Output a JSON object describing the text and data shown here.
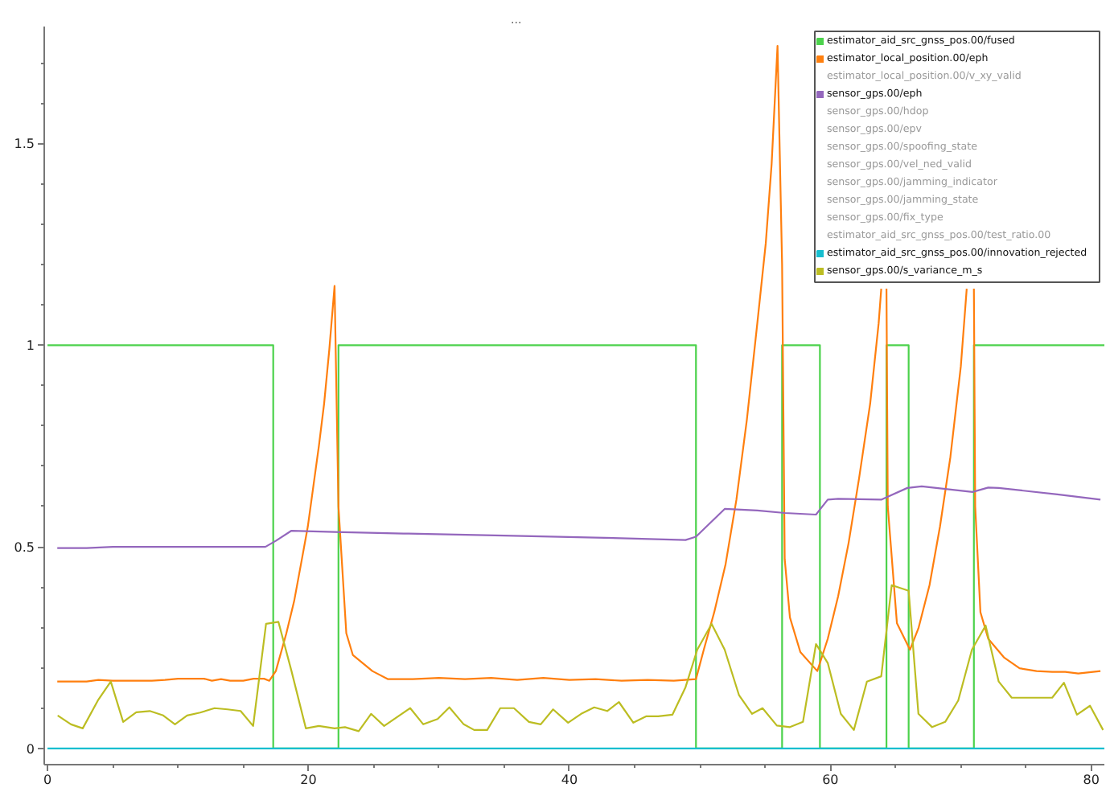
{
  "chart_data": {
    "type": "line",
    "title": "...",
    "grid": false,
    "legend": "top right",
    "xlim": [
      -0.25,
      81
    ],
    "xticks": [
      0,
      {
        "value": 5,
        "label": null
      },
      {
        "value": 10,
        "label": null
      },
      {
        "value": 15,
        "label": null
      },
      20,
      {
        "value": 25,
        "label": null
      },
      {
        "value": 30,
        "label": null
      },
      {
        "value": 35,
        "label": null
      },
      40,
      {
        "value": 45,
        "label": null
      },
      {
        "value": 50,
        "label": null
      },
      {
        "value": 55,
        "label": null
      },
      60,
      {
        "value": 65,
        "label": null
      },
      {
        "value": 70,
        "label": null
      },
      {
        "value": 75,
        "label": null
      },
      80
    ],
    "ylim": [
      -0.04,
      1.79
    ],
    "yticks": [
      0,
      {
        "value": 0.1,
        "label": null
      },
      {
        "value": 0.2,
        "label": null
      },
      {
        "value": 0.3,
        "label": null
      },
      {
        "value": 0.4,
        "label": null
      },
      0.5,
      {
        "value": 0.6,
        "label": null
      },
      {
        "value": 0.7,
        "label": null
      },
      {
        "value": 0.8,
        "label": null
      },
      {
        "value": 0.9,
        "label": null
      },
      1,
      {
        "value": 1.1,
        "label": null
      },
      {
        "value": 1.2,
        "label": null
      },
      {
        "value": 1.3,
        "label": null
      },
      {
        "value": 1.4,
        "label": null
      },
      1.5,
      {
        "value": 1.6,
        "label": null
      },
      {
        "value": 1.7,
        "label": null
      }
    ],
    "series": [
      {
        "name": "estimator_aid_src_gnss_pos.00/fused",
        "type": "step",
        "color": "#4cd24c",
        "x": [
          0,
          17.3,
          22.3,
          49.7,
          56.3,
          59.2,
          64.3,
          66.0,
          71.0,
          81
        ],
        "values": [
          1,
          0,
          1,
          0,
          1,
          0,
          1,
          0,
          1,
          1
        ]
      },
      {
        "name": "estimator_local_position.00/eph",
        "color": "#ff7f0e",
        "x": [
          0.75,
          2,
          3,
          3.9,
          5,
          6,
          7,
          8,
          9,
          10,
          11,
          12,
          12.6,
          13.3,
          14,
          15,
          15.8,
          16.6,
          17.0,
          17.5,
          18.3,
          18.9,
          19.5,
          19.95,
          20.4,
          20.8,
          21.2,
          21.6,
          22.0,
          22.3,
          22.9,
          23.4,
          24.9,
          26.1,
          28,
          30,
          32,
          34,
          36,
          38,
          40,
          42,
          44,
          46,
          48,
          49.7,
          50.3,
          51.1,
          51.97,
          52.8,
          53.6,
          54.4,
          55.05,
          55.5,
          55.95,
          56.3,
          56.5,
          56.9,
          57.7,
          59.0,
          59.8,
          60.6,
          61.4,
          62.2,
          63.05,
          63.7,
          63.9,
          64.1,
          64.3,
          64.4,
          65.1,
          66.1,
          66.75,
          67.6,
          68.4,
          69.2,
          70.0,
          70.45,
          70.55,
          70.8,
          71.0,
          71.1,
          71.5,
          72.1,
          73.3,
          74.5,
          75.8,
          77,
          78,
          79,
          80.7
        ],
        "values": [
          0.166,
          0.166,
          0.166,
          0.17,
          0.168,
          0.168,
          0.168,
          0.168,
          0.17,
          0.173,
          0.173,
          0.173,
          0.168,
          0.172,
          0.168,
          0.168,
          0.173,
          0.173,
          0.168,
          0.192,
          0.285,
          0.365,
          0.47,
          0.55,
          0.656,
          0.75,
          0.855,
          0.99,
          1.147,
          0.6,
          0.286,
          0.232,
          0.192,
          0.172,
          0.172,
          0.175,
          0.172,
          0.175,
          0.17,
          0.175,
          0.17,
          0.172,
          0.168,
          0.17,
          0.168,
          0.172,
          0.245,
          0.338,
          0.457,
          0.617,
          0.815,
          1.054,
          1.253,
          1.45,
          1.742,
          1.2,
          0.47,
          0.325,
          0.239,
          0.192,
          0.272,
          0.378,
          0.51,
          0.67,
          0.855,
          1.054,
          1.14,
          null,
          1.14,
          0.6,
          0.311,
          0.245,
          0.298,
          0.405,
          0.55,
          0.723,
          0.948,
          1.14,
          null,
          null,
          1.14,
          0.6,
          0.338,
          0.272,
          0.226,
          0.199,
          0.192,
          0.19,
          0.19,
          0.186,
          0.192
        ]
      },
      {
        "name": "estimator_local_position.00/v_xy_valid",
        "color": null
      },
      {
        "name": "sensor_gps.00/eph",
        "color": "#9467bd",
        "x": [
          0.75,
          3,
          5,
          10,
          16.7,
          17.5,
          18.7,
          22,
          27.3,
          35,
          42,
          48.9,
          49.7,
          51.9,
          54.4,
          56.5,
          58.9,
          59.8,
          60.6,
          63.9,
          64.3,
          65.9,
          67.0,
          70.9,
          72.1,
          72.9,
          77.4,
          80.7
        ],
        "values": [
          0.497,
          0.497,
          0.5,
          0.5,
          0.5,
          0.515,
          0.54,
          0.537,
          0.533,
          0.528,
          0.523,
          0.517,
          0.525,
          0.594,
          0.59,
          0.584,
          0.58,
          0.617,
          0.619,
          0.617,
          0.623,
          0.646,
          0.65,
          0.636,
          0.647,
          0.646,
          0.63,
          0.617
        ]
      },
      {
        "name": "sensor_gps.00/hdop",
        "color": null
      },
      {
        "name": "sensor_gps.00/epv",
        "color": null
      },
      {
        "name": "sensor_gps.00/spoofing_state",
        "color": null
      },
      {
        "name": "sensor_gps.00/vel_ned_valid",
        "color": null
      },
      {
        "name": "sensor_gps.00/jamming_indicator",
        "color": null
      },
      {
        "name": "sensor_gps.00/jamming_state",
        "color": null
      },
      {
        "name": "sensor_gps.00/fix_type",
        "color": null
      },
      {
        "name": "estimator_aid_src_gnss_pos.00/test_ratio.00",
        "color": null
      },
      {
        "name": "estimator_aid_src_gnss_pos.00/innovation_rejected",
        "color": "#17becf",
        "x": [
          0,
          81
        ],
        "values": [
          0,
          0
        ]
      },
      {
        "name": "sensor_gps.00/s_variance_m_s",
        "color": "#bcbd22",
        "x": [
          0.78,
          1.8,
          2.7,
          3.86,
          4.85,
          5.8,
          6.8,
          7.84,
          8.87,
          9.77,
          10.7,
          11.7,
          12.8,
          13.8,
          14.8,
          15.76,
          16.75,
          17.7,
          18.7,
          19.8,
          20.8,
          22.0,
          22.8,
          23.85,
          24.8,
          25.8,
          27.8,
          28.8,
          29.9,
          30.8,
          31.9,
          32.7,
          33.7,
          34.7,
          35.75,
          36.9,
          37.8,
          38.75,
          39.9,
          40.9,
          41.9,
          42.9,
          43.8,
          44.9,
          45.9,
          46.8,
          47.9,
          48.9,
          49.8,
          50.9,
          51.9,
          53.0,
          54.0,
          54.8,
          55.9,
          56.9,
          57.9,
          58.9,
          59.8,
          60.8,
          61.8,
          62.8,
          63.9,
          64.7,
          66.0,
          66.75,
          67.8,
          68.8,
          69.8,
          70.85,
          71.9,
          72.9,
          73.9,
          75.0,
          77.0,
          77.9,
          78.9,
          79.9,
          80.9
        ],
        "values": [
          0.082,
          0.06,
          0.05,
          0.119,
          0.166,
          0.066,
          0.09,
          0.093,
          0.082,
          0.06,
          0.082,
          0.089,
          0.1,
          0.097,
          0.093,
          0.056,
          0.309,
          0.314,
          0.192,
          0.05,
          0.056,
          0.05,
          0.053,
          0.043,
          0.086,
          0.056,
          0.1,
          0.06,
          0.073,
          0.102,
          0.06,
          0.046,
          0.046,
          0.1,
          0.1,
          0.066,
          0.06,
          0.097,
          0.064,
          0.086,
          0.102,
          0.093,
          0.115,
          0.064,
          0.08,
          0.08,
          0.084,
          0.152,
          0.245,
          0.309,
          0.245,
          0.132,
          0.086,
          0.1,
          0.057,
          0.053,
          0.066,
          0.259,
          0.212,
          0.086,
          0.046,
          0.166,
          0.179,
          0.405,
          0.391,
          0.086,
          0.053,
          0.066,
          0.119,
          0.245,
          0.305,
          0.166,
          0.126,
          0.126,
          0.126,
          0.163,
          0.084,
          0.106,
          0.046
        ]
      }
    ]
  }
}
